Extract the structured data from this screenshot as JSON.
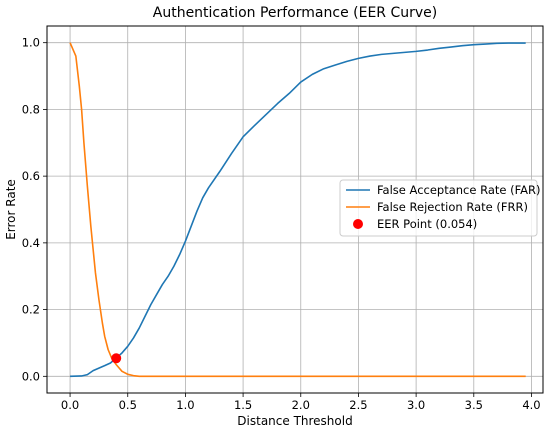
{
  "chart_data": {
    "type": "line",
    "title": "Authentication Performance (EER Curve)",
    "xlabel": "Distance Threshold",
    "ylabel": "Error Rate",
    "xlim": [
      -0.2,
      4.1
    ],
    "ylim": [
      -0.05,
      1.05
    ],
    "xticks": [
      0.0,
      0.5,
      1.0,
      1.5,
      2.0,
      2.5,
      3.0,
      3.5,
      4.0
    ],
    "yticks": [
      0.0,
      0.2,
      0.4,
      0.6,
      0.8,
      1.0
    ],
    "xtick_labels": [
      "0.0",
      "0.5",
      "1.0",
      "1.5",
      "2.0",
      "2.5",
      "3.0",
      "3.5",
      "4.0"
    ],
    "ytick_labels": [
      "0.0",
      "0.2",
      "0.4",
      "0.6",
      "0.8",
      "1.0"
    ],
    "grid": true,
    "legend_position": "center-right",
    "series": [
      {
        "name": "False Acceptance Rate (FAR)",
        "color": "#1f77b4",
        "points": [
          [
            0.0,
            0.0
          ],
          [
            0.1,
            0.001
          ],
          [
            0.15,
            0.005
          ],
          [
            0.2,
            0.017
          ],
          [
            0.3,
            0.032
          ],
          [
            0.35,
            0.04
          ],
          [
            0.4,
            0.055
          ],
          [
            0.45,
            0.07
          ],
          [
            0.5,
            0.09
          ],
          [
            0.55,
            0.115
          ],
          [
            0.6,
            0.145
          ],
          [
            0.65,
            0.18
          ],
          [
            0.7,
            0.215
          ],
          [
            0.75,
            0.245
          ],
          [
            0.8,
            0.275
          ],
          [
            0.85,
            0.3
          ],
          [
            0.9,
            0.33
          ],
          [
            0.95,
            0.365
          ],
          [
            1.0,
            0.405
          ],
          [
            1.05,
            0.45
          ],
          [
            1.1,
            0.495
          ],
          [
            1.15,
            0.535
          ],
          [
            1.2,
            0.565
          ],
          [
            1.3,
            0.615
          ],
          [
            1.4,
            0.668
          ],
          [
            1.5,
            0.718
          ],
          [
            1.6,
            0.752
          ],
          [
            1.7,
            0.785
          ],
          [
            1.8,
            0.818
          ],
          [
            1.9,
            0.848
          ],
          [
            2.0,
            0.882
          ],
          [
            2.1,
            0.905
          ],
          [
            2.2,
            0.922
          ],
          [
            2.3,
            0.933
          ],
          [
            2.4,
            0.944
          ],
          [
            2.5,
            0.953
          ],
          [
            2.6,
            0.96
          ],
          [
            2.7,
            0.965
          ],
          [
            2.8,
            0.968
          ],
          [
            2.9,
            0.971
          ],
          [
            3.0,
            0.974
          ],
          [
            3.1,
            0.978
          ],
          [
            3.2,
            0.983
          ],
          [
            3.3,
            0.987
          ],
          [
            3.4,
            0.991
          ],
          [
            3.5,
            0.994
          ],
          [
            3.6,
            0.996
          ],
          [
            3.7,
            0.998
          ],
          [
            3.8,
            0.999
          ],
          [
            3.95,
            0.999
          ]
        ]
      },
      {
        "name": "False Rejection Rate (FRR)",
        "color": "#ff7f0e",
        "points": [
          [
            0.0,
            1.0
          ],
          [
            0.05,
            0.96
          ],
          [
            0.08,
            0.87
          ],
          [
            0.1,
            0.8
          ],
          [
            0.12,
            0.7
          ],
          [
            0.15,
            0.57
          ],
          [
            0.18,
            0.45
          ],
          [
            0.2,
            0.38
          ],
          [
            0.22,
            0.31
          ],
          [
            0.25,
            0.23
          ],
          [
            0.28,
            0.16
          ],
          [
            0.3,
            0.12
          ],
          [
            0.33,
            0.08
          ],
          [
            0.36,
            0.055
          ],
          [
            0.4,
            0.035
          ],
          [
            0.45,
            0.015
          ],
          [
            0.5,
            0.006
          ],
          [
            0.55,
            0.002
          ],
          [
            0.6,
            0.0
          ],
          [
            0.8,
            0.0
          ],
          [
            1.5,
            0.0
          ],
          [
            2.5,
            0.0
          ],
          [
            3.5,
            0.0
          ],
          [
            3.95,
            0.0
          ]
        ]
      }
    ],
    "markers": [
      {
        "name": "EER Point (0.054)",
        "color": "#ff0000",
        "x": 0.4,
        "y": 0.054
      }
    ]
  }
}
